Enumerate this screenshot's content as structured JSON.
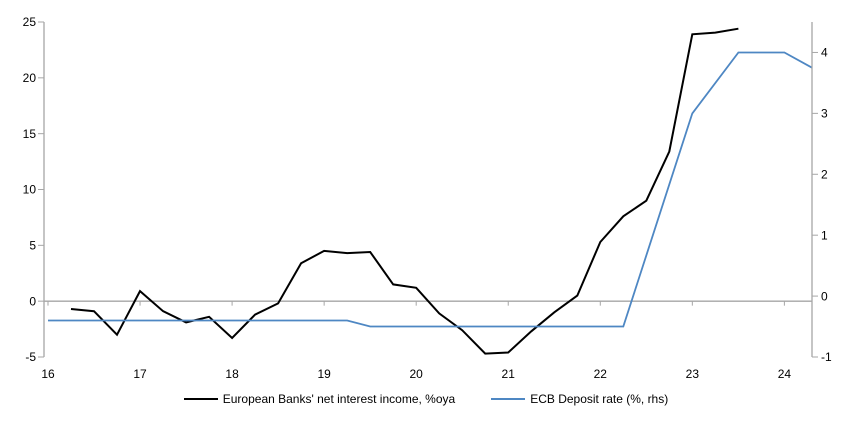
{
  "chart_data": {
    "type": "line",
    "legend_position": "bottom",
    "grid": "zero-line-only",
    "axis_color": "#A6A6A6",
    "x_axis": {
      "tick_labels": [
        "16",
        "17",
        "18",
        "19",
        "20",
        "21",
        "22",
        "23",
        "24"
      ],
      "tick_values": [
        16,
        17,
        18,
        19,
        20,
        21,
        22,
        23,
        24
      ],
      "range": [
        16,
        24.3
      ]
    },
    "left_axis": {
      "tick_labels": [
        "25",
        "20",
        "15",
        "10",
        "5",
        "0",
        "-5"
      ],
      "tick_values": [
        25,
        20,
        15,
        10,
        5,
        0,
        -5
      ],
      "range": [
        -5,
        25
      ]
    },
    "right_axis": {
      "tick_labels": [
        "4",
        "3",
        "2",
        "1",
        "0",
        "-1"
      ],
      "tick_values": [
        4,
        3,
        2,
        1,
        0,
        -1
      ],
      "range": [
        -1,
        4.5
      ]
    },
    "series": [
      {
        "name": "European Banks' net interest income, %oya",
        "axis": "left",
        "color": "#000000",
        "stroke_width": 2,
        "x": [
          16.25,
          16.5,
          16.75,
          17.0,
          17.25,
          17.5,
          17.75,
          18.0,
          18.25,
          18.5,
          18.75,
          19.0,
          19.25,
          19.5,
          19.75,
          20.0,
          20.25,
          20.5,
          20.75,
          21.0,
          21.25,
          21.5,
          21.75,
          22.0,
          22.25,
          22.5,
          22.75,
          23.0,
          23.25,
          23.5
        ],
        "values": [
          -0.7,
          -0.9,
          -3.0,
          0.9,
          -0.9,
          -1.9,
          -1.4,
          -3.3,
          -1.2,
          -0.2,
          3.4,
          4.5,
          4.3,
          4.4,
          1.5,
          1.2,
          -1.1,
          -2.6,
          -4.7,
          -4.6,
          -2.7,
          -1.0,
          0.5,
          5.3,
          7.6,
          9.0,
          13.4,
          23.9,
          24.05,
          24.4
        ]
      },
      {
        "name": "ECB Deposit rate (%, rhs)",
        "axis": "right",
        "color": "#4E87C3",
        "stroke_width": 1.8,
        "x": [
          16.0,
          19.25,
          19.5,
          22.25,
          23.0,
          23.5,
          24.0,
          24.3
        ],
        "values": [
          -0.4,
          -0.4,
          -0.5,
          -0.5,
          3.0,
          4.0,
          4.0,
          3.75
        ]
      }
    ]
  }
}
